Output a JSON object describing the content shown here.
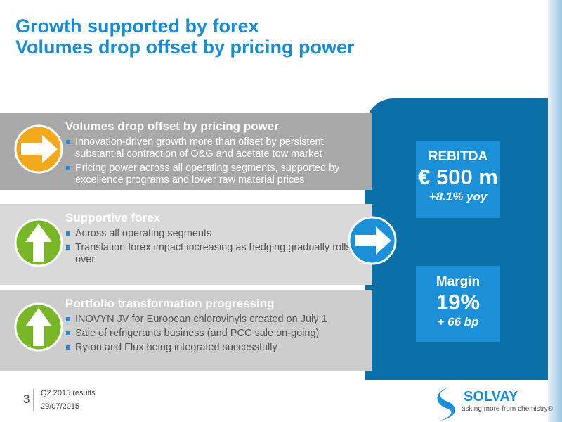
{
  "header": {
    "title_lines": [
      "Growth supported by forex",
      "Volumes drop offset by pricing power"
    ]
  },
  "sections": [
    {
      "heading": "Volumes drop offset by pricing power",
      "bullets": [
        "Innovation-driven growth more than offset by persistent substantial contraction of O&G and acetate tow market",
        "Pricing power across all operating segments, supported by excellence programs and lower raw material prices"
      ]
    },
    {
      "heading": "Supportive forex",
      "bullets": [
        "Across all operating segments",
        "Translation forex impact increasing as hedging gradually rolls over"
      ]
    },
    {
      "heading": "Portfolio transformation progressing",
      "bullets": [
        "INOVYN JV for European chlorovinyls created on July 1",
        "Sale of refrigerants business (and PCC sale on-going)",
        "Ryton and Flux being integrated successfully"
      ]
    }
  ],
  "kpis": [
    {
      "label": "REBITDA",
      "value": "€ 500 m",
      "change": "+8.1% yoy"
    },
    {
      "label": "Margin",
      "value": "19%",
      "change": "+ 66 bp"
    }
  ],
  "footer": {
    "page": "3",
    "report": "Q2 2015 results",
    "date": "29/07/2015",
    "brand": "SOLVAY",
    "tagline": "asking more from chemistry®"
  }
}
